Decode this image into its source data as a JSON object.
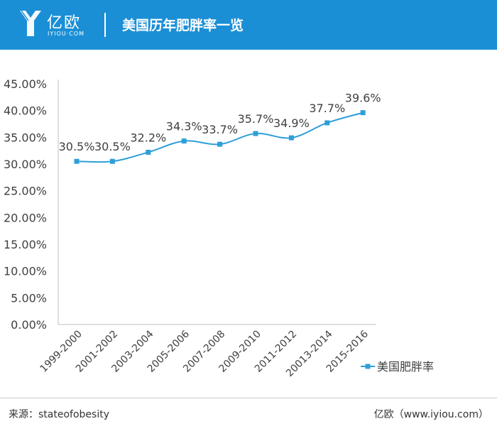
{
  "header": {
    "logo_cn": "亿欧",
    "logo_en": "IYIOU·COM",
    "title": "美国历年肥胖率一览"
  },
  "footer": {
    "source": "来源：stateofobesity",
    "brand": "亿欧（www.iyiou.com）"
  },
  "colors": {
    "header": "#1a8fd6",
    "series": "#2e9fd8"
  },
  "chart_data": {
    "type": "line",
    "categories": [
      "1999-2000",
      "2001-2002",
      "2003-2004",
      "2005-2006",
      "2007-2008",
      "2009-2010",
      "2011-2012",
      "20013-2014",
      "2015-2016"
    ],
    "series": [
      {
        "name": "美国肥胖率",
        "values": [
          30.5,
          30.5,
          32.2,
          34.3,
          33.7,
          35.7,
          34.9,
          37.7,
          39.6
        ],
        "labels": [
          "30.5%",
          "30.5%",
          "32.2%",
          "34.3%",
          "33.7%",
          "35.7%",
          "34.9%",
          "37.7%",
          "39.6%"
        ]
      }
    ],
    "yticks": [
      "0.00%",
      "5.00%",
      "10.00%",
      "15.00%",
      "20.00%",
      "25.00%",
      "30.00%",
      "35.00%",
      "40.00%",
      "45.00%"
    ],
    "ylim": [
      0,
      45
    ],
    "grid": false,
    "legend_position": "right",
    "marker": "square",
    "smooth": true
  }
}
